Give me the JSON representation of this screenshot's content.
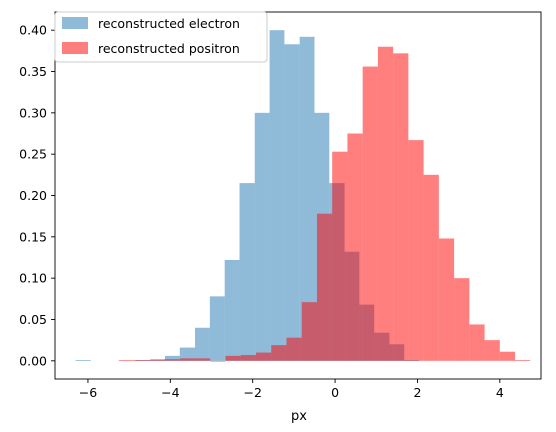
{
  "chart_data": {
    "type": "bar",
    "subtype": "overlapping-histogram",
    "title": "",
    "xlabel": "px",
    "ylabel": "",
    "xlim": [
      -6.8,
      5.0
    ],
    "ylim": [
      -0.022,
      0.422
    ],
    "x_ticks": [
      -6,
      -4,
      -2,
      0,
      2,
      4
    ],
    "y_ticks": [
      0.0,
      0.05,
      0.1,
      0.15,
      0.2,
      0.25,
      0.3,
      0.35,
      0.4
    ],
    "x_tick_labels": [
      "−6",
      "−4",
      "−2",
      "0",
      "2",
      "4"
    ],
    "y_tick_labels": [
      "0.00",
      "0.05",
      "0.10",
      "0.15",
      "0.20",
      "0.25",
      "0.30",
      "0.35",
      "0.40"
    ],
    "grid": false,
    "legend_position": "top-left",
    "colors": {
      "electron": "#1f77b4",
      "positron": "#ff0000",
      "overlap_note": "alpha-blended"
    },
    "series": [
      {
        "name": "reconstructed electron",
        "color": "#1f77b4",
        "alpha": 0.5,
        "bins": [
          {
            "x0": -6.3,
            "x1": -5.93,
            "y": 0.001
          },
          {
            "x0": -4.85,
            "x1": -4.49,
            "y": 0.001
          },
          {
            "x0": -4.49,
            "x1": -4.13,
            "y": 0.002
          },
          {
            "x0": -4.13,
            "x1": -3.77,
            "y": 0.006
          },
          {
            "x0": -3.77,
            "x1": -3.4,
            "y": 0.016
          },
          {
            "x0": -3.4,
            "x1": -3.04,
            "y": 0.04
          },
          {
            "x0": -3.04,
            "x1": -2.68,
            "y": 0.078
          },
          {
            "x0": -2.68,
            "x1": -2.32,
            "y": 0.122
          },
          {
            "x0": -2.32,
            "x1": -1.95,
            "y": 0.215
          },
          {
            "x0": -1.95,
            "x1": -1.59,
            "y": 0.3
          },
          {
            "x0": -1.59,
            "x1": -1.23,
            "y": 0.4
          },
          {
            "x0": -1.23,
            "x1": -0.86,
            "y": 0.383
          },
          {
            "x0": -0.86,
            "x1": -0.5,
            "y": 0.392
          },
          {
            "x0": -0.5,
            "x1": -0.14,
            "y": 0.3
          },
          {
            "x0": -0.14,
            "x1": 0.23,
            "y": 0.215
          },
          {
            "x0": 0.23,
            "x1": 0.59,
            "y": 0.132
          },
          {
            "x0": 0.59,
            "x1": 0.95,
            "y": 0.068
          },
          {
            "x0": 0.95,
            "x1": 1.32,
            "y": 0.034
          },
          {
            "x0": 1.32,
            "x1": 1.68,
            "y": 0.02
          },
          {
            "x0": 1.68,
            "x1": 2.04,
            "y": 0.001
          }
        ]
      },
      {
        "name": "reconstructed positron",
        "color": "#ff0000",
        "alpha": 0.5,
        "bins": [
          {
            "x0": -5.25,
            "x1": -4.88,
            "y": 0.001
          },
          {
            "x0": -4.88,
            "x1": -4.51,
            "y": 0.001
          },
          {
            "x0": -4.51,
            "x1": -4.14,
            "y": 0.001
          },
          {
            "x0": -4.14,
            "x1": -3.77,
            "y": 0.002
          },
          {
            "x0": -3.77,
            "x1": -3.4,
            "y": 0.003
          },
          {
            "x0": -3.4,
            "x1": -3.03,
            "y": 0.003
          },
          {
            "x0": -3.03,
            "x1": -2.66,
            "y": 0.0
          },
          {
            "x0": -2.66,
            "x1": -2.29,
            "y": 0.006
          },
          {
            "x0": -2.29,
            "x1": -1.92,
            "y": 0.007
          },
          {
            "x0": -1.92,
            "x1": -1.55,
            "y": 0.01
          },
          {
            "x0": -1.55,
            "x1": -1.18,
            "y": 0.019
          },
          {
            "x0": -1.18,
            "x1": -0.81,
            "y": 0.028
          },
          {
            "x0": -0.81,
            "x1": -0.44,
            "y": 0.071
          },
          {
            "x0": -0.44,
            "x1": -0.07,
            "y": 0.178
          },
          {
            "x0": -0.07,
            "x1": 0.3,
            "y": 0.253
          },
          {
            "x0": 0.3,
            "x1": 0.67,
            "y": 0.275
          },
          {
            "x0": 0.67,
            "x1": 1.04,
            "y": 0.356
          },
          {
            "x0": 1.04,
            "x1": 1.41,
            "y": 0.38
          },
          {
            "x0": 1.41,
            "x1": 1.78,
            "y": 0.372
          },
          {
            "x0": 1.78,
            "x1": 2.15,
            "y": 0.267
          },
          {
            "x0": 2.15,
            "x1": 2.52,
            "y": 0.225
          },
          {
            "x0": 2.52,
            "x1": 2.89,
            "y": 0.148
          },
          {
            "x0": 2.89,
            "x1": 3.26,
            "y": 0.1
          },
          {
            "x0": 3.26,
            "x1": 3.63,
            "y": 0.044
          },
          {
            "x0": 3.63,
            "x1": 4.0,
            "y": 0.025
          },
          {
            "x0": 4.0,
            "x1": 4.37,
            "y": 0.011
          },
          {
            "x0": 4.37,
            "x1": 4.74,
            "y": 0.001
          }
        ]
      }
    ]
  }
}
